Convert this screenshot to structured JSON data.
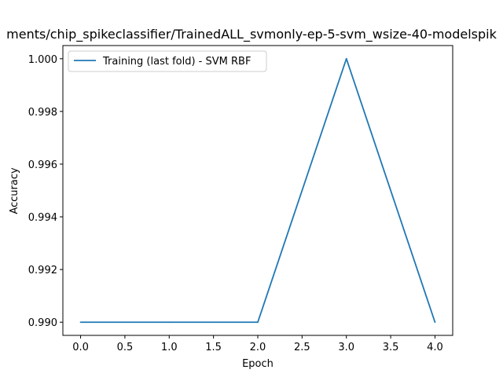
{
  "chart_data": {
    "type": "line",
    "title": "ments/chip_spikeclassifier/TrainedALL_svmonly-ep-5-svm_wsize-40-modelspik",
    "xlabel": "Epoch",
    "ylabel": "Accuracy",
    "xlim": [
      -0.2,
      4.2
    ],
    "ylim": [
      0.9895,
      1.0005
    ],
    "xticks": [
      0.0,
      0.5,
      1.0,
      1.5,
      2.0,
      2.5,
      3.0,
      3.5,
      4.0
    ],
    "xtick_labels": [
      "0.0",
      "0.5",
      "1.0",
      "1.5",
      "2.0",
      "2.5",
      "3.0",
      "3.5",
      "4.0"
    ],
    "yticks": [
      0.99,
      0.992,
      0.994,
      0.996,
      0.998,
      1.0
    ],
    "ytick_labels": [
      "0.990",
      "0.992",
      "0.994",
      "0.996",
      "0.998",
      "1.000"
    ],
    "grid": false,
    "legend_position": "top-left",
    "series": [
      {
        "name": "Training (last fold) - SVM RBF",
        "color": "#1f77b4",
        "x": [
          0,
          1,
          2,
          3,
          4
        ],
        "y": [
          0.99,
          0.99,
          0.99,
          1.0,
          0.99
        ]
      }
    ]
  }
}
